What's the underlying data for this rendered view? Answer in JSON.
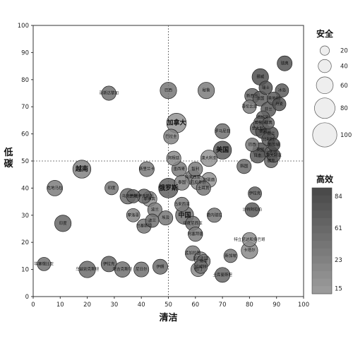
{
  "chart_data": {
    "type": "scatter",
    "xlabel": "清洁",
    "ylabel": "低碳",
    "xlim": [
      0,
      100
    ],
    "ylim": [
      0,
      100
    ],
    "xticks": [
      "0",
      "10",
      "20",
      "30",
      "40",
      "50",
      "60",
      "70",
      "80",
      "90",
      "100"
    ],
    "yticks": [
      "0",
      "10",
      "20",
      "30",
      "40",
      "50",
      "60",
      "70",
      "80",
      "90",
      "100"
    ],
    "reference_lines": {
      "x": 50,
      "y": 50
    },
    "grid": false,
    "size_legend": {
      "title": "安全",
      "entries": [
        {
          "label": "20",
          "value": 20
        },
        {
          "label": "40",
          "value": 40
        },
        {
          "label": "60",
          "value": 60
        },
        {
          "label": "80",
          "value": 80
        },
        {
          "label": "100",
          "value": 100
        }
      ]
    },
    "color_legend": {
      "title": "高效",
      "labels": [
        "84",
        "61",
        "23",
        "15"
      ],
      "range": [
        15,
        84
      ],
      "color_low": "#9a9a9a",
      "color_high": "#4a4a4a"
    },
    "points": [
      {
        "label": "瑞典",
        "x": 93,
        "y": 86,
        "size": 30,
        "color": 75
      },
      {
        "label": "挪威",
        "x": 84,
        "y": 81,
        "size": 35,
        "color": 80
      },
      {
        "label": "瑞士",
        "x": 86,
        "y": 77,
        "size": 25,
        "color": 75
      },
      {
        "label": "冰岛",
        "x": 92,
        "y": 76,
        "size": 25,
        "color": 70
      },
      {
        "label": "新西兰",
        "x": 81,
        "y": 74,
        "size": 30,
        "color": 60
      },
      {
        "label": "法国",
        "x": 84,
        "y": 73,
        "size": 30,
        "color": 65
      },
      {
        "label": "奥地利",
        "x": 89,
        "y": 73,
        "size": 25,
        "color": 70
      },
      {
        "label": "丹麦",
        "x": 91,
        "y": 71,
        "size": 25,
        "color": 75
      },
      {
        "label": "哥伦比亚",
        "x": 80,
        "y": 70,
        "size": 25,
        "color": 40
      },
      {
        "label": "芬兰",
        "x": 87,
        "y": 69,
        "size": 30,
        "color": 70
      },
      {
        "label": "西班牙",
        "x": 85,
        "y": 66,
        "size": 25,
        "color": 60
      },
      {
        "label": "葡萄牙",
        "x": 84,
        "y": 64,
        "size": 25,
        "color": 55
      },
      {
        "label": "意大利",
        "x": 83,
        "y": 62,
        "size": 30,
        "color": 60
      },
      {
        "label": "德国",
        "x": 85,
        "y": 61,
        "size": 30,
        "color": 80
      },
      {
        "label": "荷兰",
        "x": 88,
        "y": 60,
        "size": 28,
        "color": 75
      },
      {
        "label": "比利时",
        "x": 87,
        "y": 58,
        "size": 25,
        "color": 70
      },
      {
        "label": "巴西",
        "x": 81,
        "y": 56,
        "size": 25,
        "color": 45
      },
      {
        "label": "英国",
        "x": 84,
        "y": 54,
        "size": 30,
        "color": 78
      },
      {
        "label": "日本",
        "x": 83,
        "y": 52,
        "size": 30,
        "color": 70
      },
      {
        "label": "以色列",
        "x": 88,
        "y": 53,
        "size": 25,
        "color": 65
      },
      {
        "label": "捷克",
        "x": 88,
        "y": 50,
        "size": 25,
        "color": 60
      },
      {
        "label": "新加坡",
        "x": 89,
        "y": 56,
        "size": 22,
        "color": 82
      },
      {
        "label": "澳大利亚",
        "x": 89,
        "y": 52,
        "size": 25,
        "color": 70
      },
      {
        "label": "韩国",
        "x": 78,
        "y": 48,
        "size": 28,
        "color": 55
      },
      {
        "label": "美国",
        "x": 70,
        "y": 54,
        "size": 40,
        "color": 70
      },
      {
        "label": "罗马尼亚",
        "x": 70,
        "y": 61,
        "size": 30,
        "color": 50
      },
      {
        "label": "瑞典2",
        "x": 87,
        "y": 64,
        "size": 20,
        "color": 60
      },
      {
        "label": "加拿大",
        "x": 53,
        "y": 64,
        "size": 45,
        "color": 20
      },
      {
        "label": "俄罗斯",
        "x": 50,
        "y": 40,
        "size": 45,
        "color": 65
      },
      {
        "label": "中国",
        "x": 56,
        "y": 30,
        "size": 40,
        "color": 50
      },
      {
        "label": "巴拉圭",
        "x": 51,
        "y": 59,
        "size": 30,
        "color": 35
      },
      {
        "label": "哥斯达黎加",
        "x": 28,
        "y": 75,
        "size": 28,
        "color": 50
      },
      {
        "label": "巴西2",
        "x": 50,
        "y": 76,
        "size": 35,
        "color": 45
      },
      {
        "label": "秘鲁",
        "x": 64,
        "y": 76,
        "size": 35,
        "color": 40
      },
      {
        "label": "澳大利亚2",
        "x": 65,
        "y": 51,
        "size": 35,
        "color": 20
      },
      {
        "label": "越南",
        "x": 18,
        "y": 47,
        "size": 40,
        "color": 35
      },
      {
        "label": "斯里兰卡",
        "x": 42,
        "y": 47,
        "size": 30,
        "color": 40
      },
      {
        "label": "阿根廷",
        "x": 52,
        "y": 51,
        "size": 28,
        "color": 30
      },
      {
        "label": "墨西哥",
        "x": 54,
        "y": 47,
        "size": 30,
        "color": 40
      },
      {
        "label": "智利",
        "x": 60,
        "y": 47,
        "size": 28,
        "color": 40
      },
      {
        "label": "马来西亚",
        "x": 59,
        "y": 44,
        "size": 30,
        "color": 45
      },
      {
        "label": "泰国",
        "x": 55,
        "y": 42,
        "size": 30,
        "color": 35
      },
      {
        "label": "厄瓜多尔",
        "x": 61,
        "y": 42,
        "size": 28,
        "color": 30
      },
      {
        "label": "阿联酋",
        "x": 65,
        "y": 43,
        "size": 30,
        "color": 20
      },
      {
        "label": "土耳其",
        "x": 63,
        "y": 40,
        "size": 28,
        "color": 45
      },
      {
        "label": "危地马拉",
        "x": 8,
        "y": 40,
        "size": 32,
        "color": 40
      },
      {
        "label": "印度",
        "x": 29,
        "y": 40,
        "size": 25,
        "color": 45
      },
      {
        "label": "乌克兰",
        "x": 35,
        "y": 37,
        "size": 32,
        "color": 55
      },
      {
        "label": "伊朗",
        "x": 37,
        "y": 37,
        "size": 25,
        "color": 60
      },
      {
        "label": "哈萨克斯坦",
        "x": 41,
        "y": 37,
        "size": 28,
        "color": 60
      },
      {
        "label": "菲律宾",
        "x": 43,
        "y": 36,
        "size": 30,
        "color": 25
      },
      {
        "label": "波兰",
        "x": 45,
        "y": 32,
        "size": 28,
        "color": 40
      },
      {
        "label": "马来西亚2",
        "x": 55,
        "y": 34,
        "size": 28,
        "color": 40
      },
      {
        "label": "埃及",
        "x": 49,
        "y": 29,
        "size": 28,
        "color": 45
      },
      {
        "label": "波兰2",
        "x": 44,
        "y": 28,
        "size": 25,
        "color": 50
      },
      {
        "label": "摩洛哥",
        "x": 37,
        "y": 30,
        "size": 25,
        "color": 35
      },
      {
        "label": "巴基斯坦",
        "x": 41,
        "y": 26,
        "size": 28,
        "color": 45
      },
      {
        "label": "印度尼西亚",
        "x": 59,
        "y": 27,
        "size": 28,
        "color": 50
      },
      {
        "label": "委内瑞拉",
        "x": 67,
        "y": 30,
        "size": 28,
        "color": 45
      },
      {
        "label": "阿塞拜疆",
        "x": 60,
        "y": 23,
        "size": 28,
        "color": 40
      },
      {
        "label": "伊拉克",
        "x": 82,
        "y": 38,
        "size": 25,
        "color": 65
      },
      {
        "label": "沙特阿拉伯",
        "x": 81,
        "y": 32,
        "size": 28,
        "color": 70
      },
      {
        "label": "印度2",
        "x": 11,
        "y": 27,
        "size": 35,
        "color": 60
      },
      {
        "label": "孟加拉国",
        "x": 59,
        "y": 16,
        "size": 30,
        "color": 40
      },
      {
        "label": "尼日利亚",
        "x": 62,
        "y": 14,
        "size": 25,
        "color": 35
      },
      {
        "label": "南非",
        "x": 63,
        "y": 13,
        "size": 25,
        "color": 40
      },
      {
        "label": "科威特",
        "x": 62,
        "y": 11,
        "size": 25,
        "color": 50
      },
      {
        "label": "也门",
        "x": 61,
        "y": 10,
        "size": 28,
        "color": 30
      },
      {
        "label": "新加坡2",
        "x": 73,
        "y": 15,
        "size": 25,
        "color": 45
      },
      {
        "label": "卡塔尔",
        "x": 80,
        "y": 17,
        "size": 35,
        "color": 30
      },
      {
        "label": "特立尼达和多巴哥",
        "x": 80,
        "y": 21,
        "size": 28,
        "color": 25
      },
      {
        "label": "土库曼斯坦",
        "x": 70,
        "y": 8,
        "size": 30,
        "color": 60
      },
      {
        "label": "伊拉克2",
        "x": 28,
        "y": 12,
        "size": 32,
        "color": 60
      },
      {
        "label": "塔吉克斯坦",
        "x": 33,
        "y": 10,
        "size": 32,
        "color": 50
      },
      {
        "label": "乌兹别克斯坦",
        "x": 20,
        "y": 10,
        "size": 35,
        "color": 55
      },
      {
        "label": "埃塞俄比亚",
        "x": 4,
        "y": 12,
        "size": 25,
        "color": 50
      },
      {
        "label": "尼日尔",
        "x": 40,
        "y": 10,
        "size": 30,
        "color": 50
      },
      {
        "label": "伊朗2",
        "x": 47,
        "y": 11,
        "size": 30,
        "color": 55
      }
    ]
  }
}
